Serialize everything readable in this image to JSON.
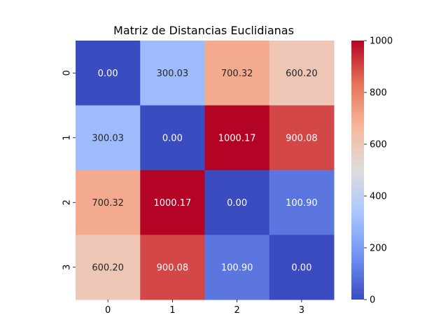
{
  "chart_data": {
    "type": "heatmap",
    "title": "Matriz de Distancias Euclidianas",
    "xlabel": "",
    "ylabel": "",
    "x_categories": [
      "0",
      "1",
      "2",
      "3"
    ],
    "y_categories": [
      "0",
      "1",
      "2",
      "3"
    ],
    "values": [
      [
        0.0,
        300.03,
        700.32,
        600.2
      ],
      [
        300.03,
        0.0,
        1000.17,
        900.08
      ],
      [
        700.32,
        1000.17,
        0.0,
        100.9
      ],
      [
        600.2,
        900.08,
        100.9,
        0.0
      ]
    ],
    "cell_labels": [
      [
        "0.00",
        "300.03",
        "700.32",
        "600.20"
      ],
      [
        "300.03",
        "0.00",
        "1000.17",
        "900.08"
      ],
      [
        "700.32",
        "1000.17",
        "0.00",
        "100.90"
      ],
      [
        "600.20",
        "900.08",
        "100.90",
        "0.00"
      ]
    ],
    "colormap": "coolwarm",
    "colormap_stops": [
      "#3b4cc0",
      "#7092f3",
      "#aac7fd",
      "#dddcdc",
      "#f7b89c",
      "#e7745b",
      "#b40426"
    ],
    "vmin": 0,
    "vmax": 1000.17,
    "colorbar": {
      "ticks": [
        0,
        200,
        400,
        600,
        800,
        1000
      ],
      "tick_labels": [
        "0",
        "200",
        "400",
        "600",
        "800",
        "1000"
      ]
    },
    "grid": false,
    "legend": "colorbar-right"
  }
}
